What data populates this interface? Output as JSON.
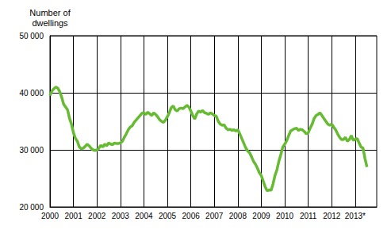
{
  "chart_data": {
    "type": "line",
    "y_label": "Number of\ndwellings",
    "categories": [
      "2000",
      null,
      null,
      null,
      null,
      null,
      null,
      null,
      null,
      null,
      null,
      null,
      "2001",
      null,
      null,
      null,
      null,
      null,
      null,
      null,
      null,
      null,
      null,
      null,
      "2002",
      null,
      null,
      null,
      null,
      null,
      null,
      null,
      null,
      null,
      null,
      null,
      "2003",
      null,
      null,
      null,
      null,
      null,
      null,
      null,
      null,
      null,
      null,
      null,
      "2004",
      null,
      null,
      null,
      null,
      null,
      null,
      null,
      null,
      null,
      null,
      null,
      "2005",
      null,
      null,
      null,
      null,
      null,
      null,
      null,
      null,
      null,
      null,
      null,
      "2006",
      null,
      null,
      null,
      null,
      null,
      null,
      null,
      null,
      null,
      null,
      null,
      "2007",
      null,
      null,
      null,
      null,
      null,
      null,
      null,
      null,
      null,
      null,
      null,
      "2008",
      null,
      null,
      null,
      null,
      null,
      null,
      null,
      null,
      null,
      null,
      null,
      "2009",
      null,
      null,
      null,
      null,
      null,
      null,
      null,
      null,
      null,
      null,
      null,
      "2010",
      null,
      null,
      null,
      null,
      null,
      null,
      null,
      null,
      null,
      null,
      null,
      "2011",
      null,
      null,
      null,
      null,
      null,
      null,
      null,
      null,
      null,
      null,
      null,
      "2012",
      null,
      null,
      null,
      null,
      null,
      null,
      null,
      null,
      null,
      null,
      null,
      "2013*",
      null,
      null,
      null,
      null,
      null,
      null,
      null,
      null,
      null,
      null,
      null
    ],
    "values": [
      39500,
      40300,
      40700,
      41000,
      40800,
      40200,
      39200,
      38000,
      37500,
      37000,
      35500,
      34500,
      33000,
      32000,
      31500,
      30500,
      30200,
      30300,
      30600,
      31000,
      30700,
      30300,
      30000,
      29900,
      30000,
      30300,
      30800,
      30500,
      31000,
      30700,
      31200,
      31000,
      30900,
      31200,
      31100,
      31100,
      31200,
      31500,
      32200,
      32800,
      33500,
      34000,
      34200,
      34800,
      35200,
      35600,
      36000,
      36400,
      36500,
      36200,
      36600,
      36300,
      36000,
      36500,
      36200,
      35800,
      35300,
      35000,
      34800,
      35200,
      35800,
      36500,
      37400,
      37700,
      37000,
      36800,
      37200,
      37300,
      37200,
      37500,
      37800,
      37500,
      36800,
      36000,
      35400,
      36300,
      36800,
      36600,
      36900,
      36500,
      36400,
      36200,
      36500,
      36300,
      36000,
      35900,
      35000,
      34500,
      34300,
      34400,
      33800,
      33500,
      33600,
      33400,
      33500,
      33300,
      33500,
      32800,
      32000,
      31200,
      30400,
      29800,
      29500,
      28800,
      28000,
      27500,
      26800,
      26000,
      25500,
      24500,
      23500,
      22800,
      23000,
      22900,
      24000,
      25500,
      26500,
      28000,
      29200,
      30500,
      31000,
      31600,
      32500,
      33300,
      33500,
      33700,
      33800,
      33400,
      33600,
      33500,
      33200,
      32800,
      33000,
      33800,
      34500,
      35500,
      36000,
      36200,
      36500,
      36000,
      35500,
      35000,
      34500,
      34300,
      34500,
      34000,
      33500,
      32800,
      32200,
      31800,
      31800,
      32200,
      31500,
      31800,
      32500,
      31700,
      31800,
      32000,
      31200,
      30500,
      30300,
      28500,
      27000,
      null,
      null,
      null,
      null,
      null
    ],
    "color": "#66bb33",
    "ylim": [
      20000,
      50000
    ],
    "yticks": [
      {
        "value": 20000,
        "label": "20 000"
      },
      {
        "value": 30000,
        "label": "30 000"
      },
      {
        "value": 40000,
        "label": "40 000"
      },
      {
        "value": 50000,
        "label": "50 000"
      }
    ],
    "grid": true
  }
}
